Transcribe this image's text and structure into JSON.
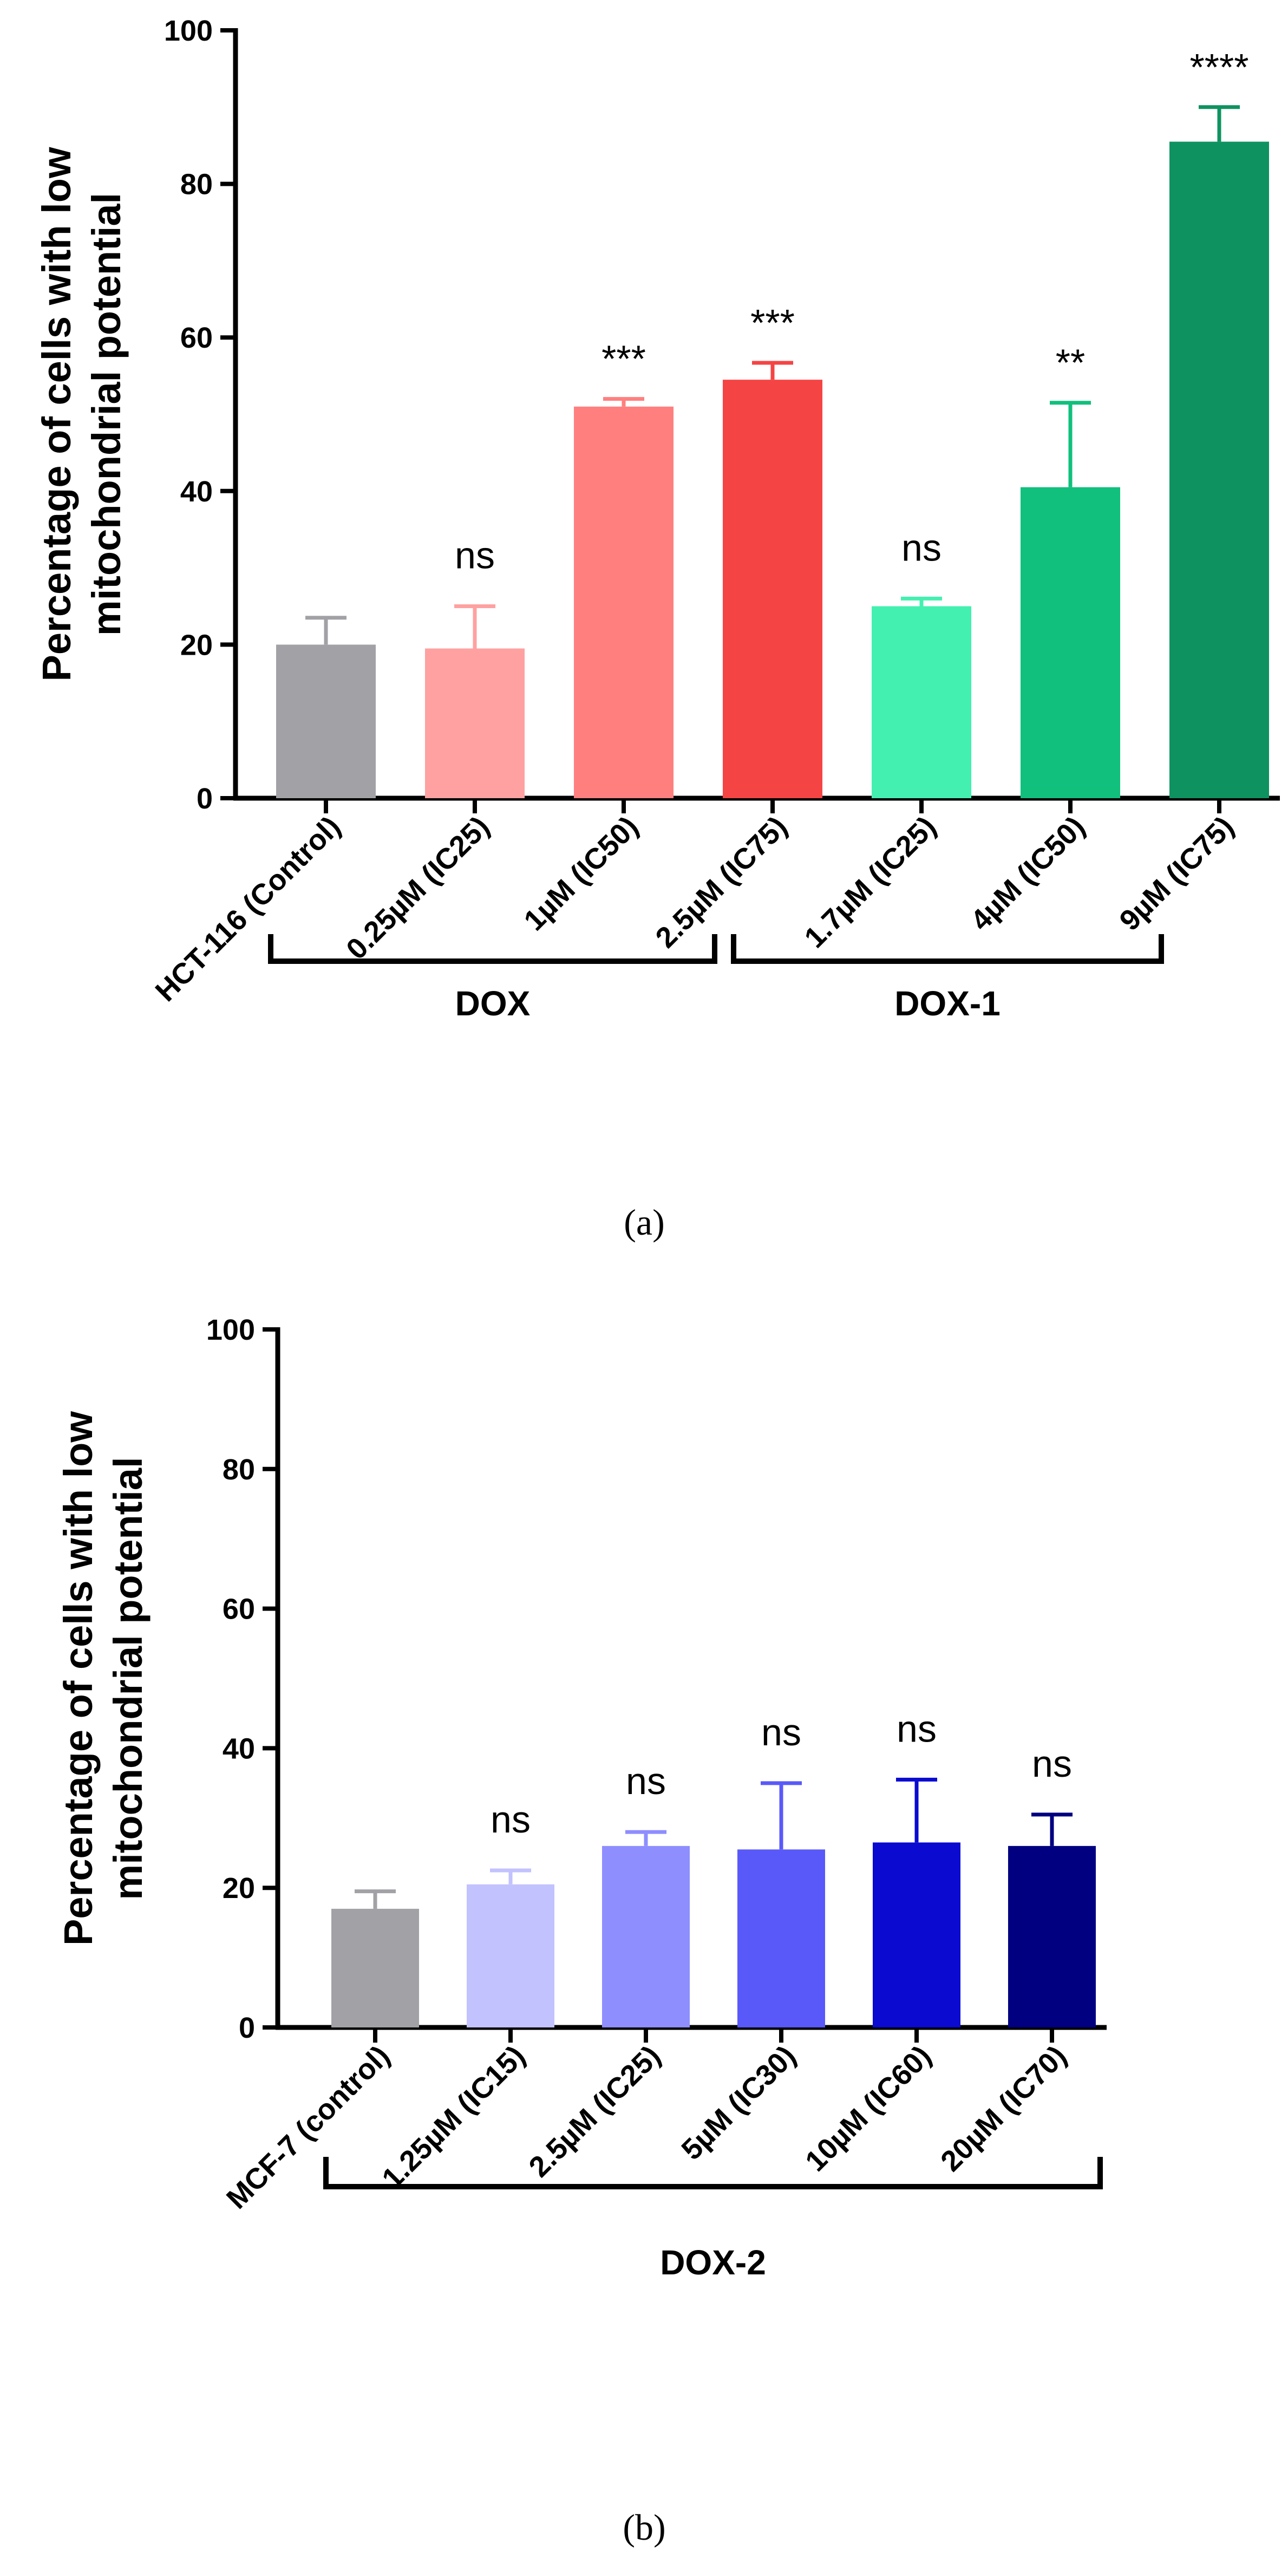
{
  "chart_data": [
    {
      "type": "bar",
      "panel_label": "(a)",
      "ylabel_line1": "Percentage of cells with low",
      "ylabel_line2": "mitochondrial potential",
      "ylim": [
        0,
        100
      ],
      "yticks": [
        "0",
        "20",
        "40",
        "60",
        "80",
        "100"
      ],
      "categories": [
        "HCT-116 (Control)",
        "0.25µM (IC25)",
        "1µM (IC50)",
        "2.5µM (IC75)",
        "1.7µM (IC25)",
        "4µM (IC50)",
        "9µM (IC75)"
      ],
      "values": [
        20,
        19.5,
        51,
        54.5,
        25,
        40.5,
        85.5
      ],
      "errors": [
        3.5,
        5.5,
        1,
        2.2,
        1,
        11,
        4.5
      ],
      "significance": [
        "",
        "ns",
        "***",
        "***",
        "ns",
        "**",
        "****"
      ],
      "colors": [
        "#a2a1a6",
        "#ffa1a1",
        "#ff7f7f",
        "#f54444",
        "#43f0b0",
        "#10c07c",
        "#0e9360"
      ],
      "groups": [
        {
          "label": "DOX",
          "from": 0,
          "to": 3
        },
        {
          "label": "DOX-1",
          "from": 3,
          "to": 6
        }
      ]
    },
    {
      "type": "bar",
      "panel_label": "(b)",
      "ylabel_line1": "Percentage of cells with low",
      "ylabel_line2": "mitochondrial potential",
      "ylim": [
        0,
        100
      ],
      "yticks": [
        "0",
        "20",
        "40",
        "60",
        "80",
        "100"
      ],
      "categories": [
        "MCF-7 (control)",
        "1.25µM (IC15)",
        "2.5µM (IC25)",
        "5µM (IC30)",
        "10µM (IC60)",
        "20µM (IC70)"
      ],
      "values": [
        17,
        20.5,
        26,
        25.5,
        26.5,
        26
      ],
      "errors": [
        2.5,
        2,
        2,
        9.5,
        9,
        4.5
      ],
      "significance": [
        "",
        "ns",
        "ns",
        "ns",
        "ns",
        "ns"
      ],
      "colors": [
        "#a2a1a6",
        "#c2c2ff",
        "#8e8eff",
        "#5959fa",
        "#0a0ad0",
        "#000080"
      ],
      "groups": [
        {
          "label": "DOX-2",
          "from": 0,
          "to": 6
        }
      ]
    }
  ]
}
